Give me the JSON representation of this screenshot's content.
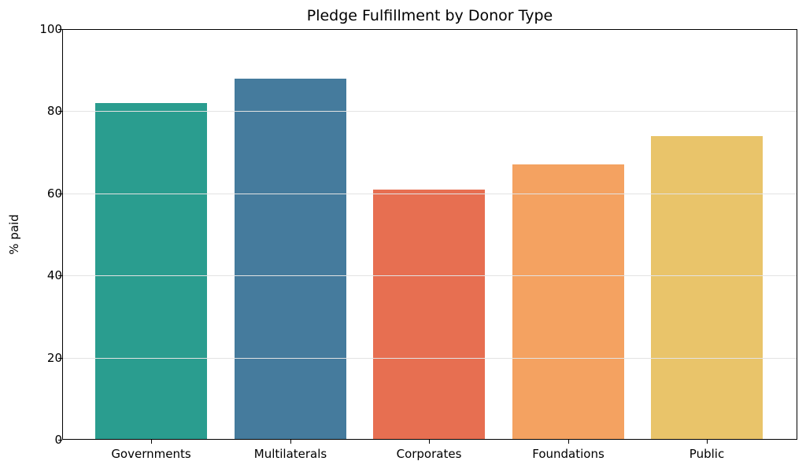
{
  "chart_data": {
    "type": "bar",
    "title": "Pledge Fulfillment by Donor Type",
    "xlabel": "",
    "ylabel": "% paid",
    "categories": [
      "Governments",
      "Multilaterals",
      "Corporates",
      "Foundations",
      "Public"
    ],
    "values": [
      82,
      88,
      61,
      67,
      74
    ],
    "colors": [
      "#2a9d8f",
      "#457b9d",
      "#e76f51",
      "#f4a261",
      "#e9c46a"
    ],
    "ylim": [
      0,
      100
    ],
    "yticks": [
      "0",
      "20",
      "40",
      "60",
      "80",
      "100"
    ],
    "grid": "y",
    "legend": null
  }
}
